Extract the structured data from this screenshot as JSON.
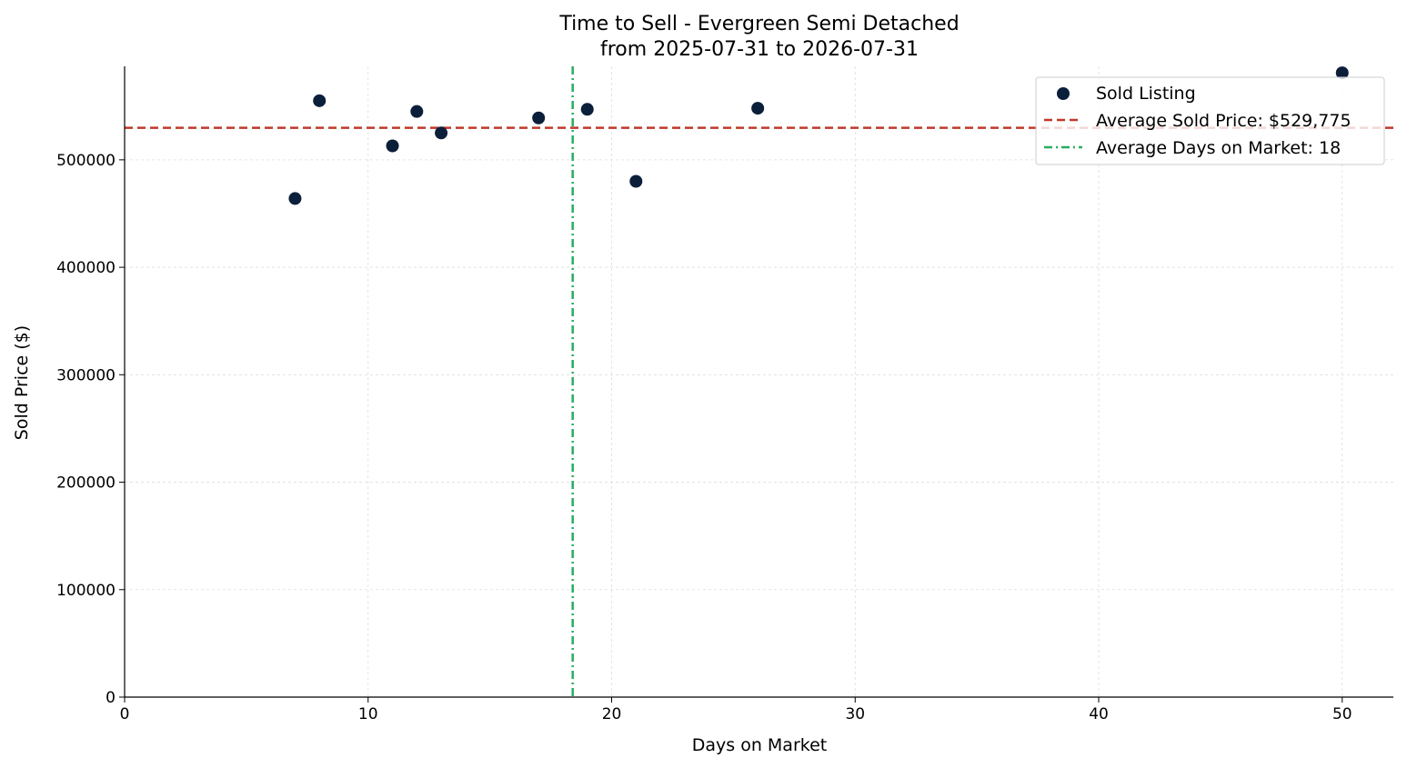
{
  "chart_data": {
    "type": "scatter",
    "title": "Time to Sell - Evergreen Semi Detached",
    "subtitle": "from 2025-07-31 to 2026-07-31",
    "xlabel": "Days on Market",
    "ylabel": "Sold Price ($)",
    "xlim": [
      0,
      52.1
    ],
    "ylim": [
      0,
      587000
    ],
    "x_ticks": [
      0,
      10,
      20,
      30,
      40,
      50
    ],
    "y_ticks": [
      0,
      100000,
      200000,
      300000,
      400000,
      500000
    ],
    "grid": true,
    "legend_position": "top-right",
    "series": [
      {
        "name": "Sold Listing",
        "color": "#0b1f3a",
        "points": [
          {
            "x": 7,
            "y": 464000
          },
          {
            "x": 8,
            "y": 555000
          },
          {
            "x": 11,
            "y": 513000
          },
          {
            "x": 12,
            "y": 545000
          },
          {
            "x": 13,
            "y": 525000
          },
          {
            "x": 17,
            "y": 539000
          },
          {
            "x": 19,
            "y": 547000
          },
          {
            "x": 21,
            "y": 480000
          },
          {
            "x": 26,
            "y": 548000
          },
          {
            "x": 50,
            "y": 581000
          }
        ]
      }
    ],
    "reference_lines": [
      {
        "name": "Average Sold Price: $529,775",
        "orientation": "horizontal",
        "value": 529775,
        "color": "#c0392b",
        "style": "dashed"
      },
      {
        "name": "Average Days on Market: 18",
        "orientation": "vertical",
        "value": 18.4,
        "color": "#27ae60",
        "style": "dashdot"
      }
    ]
  }
}
